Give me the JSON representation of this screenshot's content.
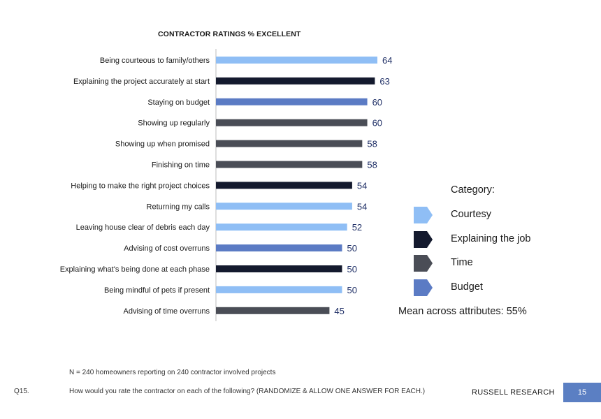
{
  "chart_data": {
    "type": "bar",
    "orientation": "horizontal",
    "title": "CONTRACTOR RATINGS % EXCELLENT",
    "xlim": [
      0,
      100
    ],
    "grid": false,
    "categories": [
      "Being courteous to family/others",
      "Explaining the project accurately at start",
      "Staying on budget",
      "Showing up regularly",
      "Showing up when promised",
      "Finishing on time",
      "Helping to make the right project choices",
      "Returning my calls",
      "Leaving house clear of debris each day",
      "Advising of cost overruns",
      "Explaining what's being done at each phase",
      "Being mindful of pets if present",
      "Advising of time overruns"
    ],
    "values": [
      64,
      63,
      60,
      60,
      58,
      58,
      54,
      54,
      52,
      50,
      50,
      50,
      45
    ],
    "bar_categories": [
      "Courtesy",
      "Explaining the job",
      "Budget",
      "Time",
      "Time",
      "Time",
      "Explaining the job",
      "Courtesy",
      "Courtesy",
      "Budget",
      "Explaining the job",
      "Courtesy",
      "Time"
    ],
    "legend_placement": "right"
  },
  "legend": {
    "title": "Category:",
    "items": [
      {
        "label": "Courtesy",
        "color": "#8fbef5"
      },
      {
        "label": "Explaining the job",
        "color": "#141a2e"
      },
      {
        "label": "Time",
        "color": "#4a4d56"
      },
      {
        "label": "Budget",
        "color": "#5b7bc4"
      }
    ]
  },
  "mean_text": "Mean across attributes:  55%",
  "footer": {
    "sample_note": "N = 240 homeowners reporting on 240 contractor involved projects",
    "question_id": "Q15.",
    "question_text": "How would you rate the contractor on each of the following? (RANDOMIZE & ALLOW ONE ANSWER FOR EACH.)",
    "brand": "RUSSELL RESEARCH",
    "page_number": "15"
  },
  "colors": {
    "value_label": "#1f2f66",
    "axis": "#bcbcbc",
    "page_box": "#5b7fc3"
  }
}
